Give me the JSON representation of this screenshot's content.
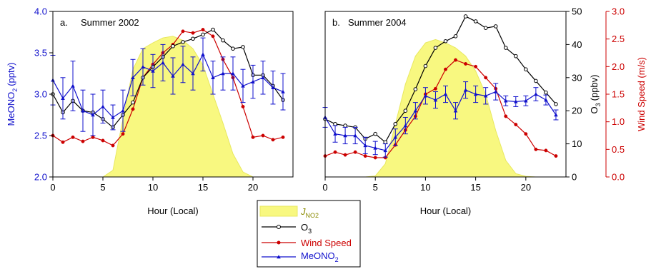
{
  "colors": {
    "meono2": "#1010cc",
    "o3": "#000000",
    "wind": "#cc0000",
    "jno2_fill": "#f8f880",
    "jno2_stroke": "#e8e860",
    "jno2_label": "#8a8a00"
  },
  "legend": {
    "jno2": "J",
    "jno2_sub": "NO2",
    "o3": "O",
    "o3_sub": "3",
    "wind": "Wind Speed",
    "meono2": "MeONO",
    "meono2_sub": "2"
  },
  "chart_data": [
    {
      "type": "line",
      "panel": "a.",
      "title": "Summer 2002",
      "xlabel": "Hour (Local)",
      "ylabel": "MeONO",
      "ylabel_sub": "2",
      "ylabel_unit": "(pptv)",
      "xlim": [
        0,
        24
      ],
      "ylim": [
        2.0,
        4.0
      ],
      "xticks": [
        "0",
        "5",
        "10",
        "15",
        "20"
      ],
      "yticks": [
        "2.0",
        "2.5",
        "3.0",
        "3.5",
        "4.0"
      ],
      "grid": false,
      "x": [
        0,
        1,
        2,
        3,
        4,
        5,
        6,
        7,
        8,
        9,
        10,
        11,
        12,
        13,
        14,
        15,
        16,
        17,
        18,
        19,
        20,
        21,
        22,
        23
      ],
      "series": [
        {
          "name": "MeONO2",
          "axis": "left",
          "values": [
            3.17,
            2.95,
            3.1,
            2.8,
            2.75,
            2.85,
            2.72,
            2.8,
            3.2,
            3.33,
            3.28,
            3.38,
            3.22,
            3.36,
            3.25,
            3.48,
            3.2,
            3.25,
            3.25,
            3.1,
            3.15,
            3.2,
            3.08,
            3.03
          ],
          "errors": [
            0.3,
            0.25,
            0.3,
            0.25,
            0.25,
            0.2,
            0.15,
            0.25,
            0.22,
            0.22,
            0.2,
            0.22,
            0.22,
            0.22,
            0.2,
            0.2,
            0.2,
            0.2,
            0.2,
            0.2,
            0.2,
            0.2,
            0.2,
            0.22
          ]
        },
        {
          "name": "O3",
          "axis": "right",
          "values": [
            3.0,
            2.78,
            2.92,
            2.8,
            2.78,
            2.7,
            2.6,
            2.75,
            2.9,
            3.2,
            3.33,
            3.45,
            3.58,
            3.63,
            3.67,
            3.72,
            3.78,
            3.65,
            3.55,
            3.57,
            3.23,
            3.23,
            3.1,
            2.93
          ]
        },
        {
          "name": "Wind Speed",
          "axis": "right",
          "values": [
            2.5,
            2.42,
            2.48,
            2.43,
            2.48,
            2.44,
            2.38,
            2.52,
            2.82,
            3.2,
            3.36,
            3.5,
            3.6,
            3.76,
            3.74,
            3.78,
            3.7,
            3.42,
            3.2,
            2.85,
            2.48,
            2.5,
            2.45,
            2.48
          ]
        },
        {
          "name": "JNO2",
          "type": "area",
          "values": [
            2.0,
            2.0,
            2.0,
            2.0,
            2.0,
            2.0,
            2.08,
            2.7,
            3.3,
            3.55,
            3.62,
            3.68,
            3.7,
            3.65,
            3.55,
            3.35,
            3.0,
            2.65,
            2.28,
            2.06,
            2.0,
            2.0,
            2.0,
            2.0
          ]
        }
      ]
    },
    {
      "type": "line",
      "panel": "b.",
      "title": "Summer 2004",
      "xlabel": "Hour (Local)",
      "xlim": [
        0,
        24
      ],
      "xticks": [
        "0",
        "5",
        "10",
        "15",
        "20"
      ],
      "y_o3_label": "O",
      "y_o3_sub": "3",
      "y_o3_unit": "(ppbv)",
      "y_o3_lim": [
        0,
        50
      ],
      "y_o3_ticks": [
        "0",
        "10",
        "20",
        "30",
        "40",
        "50"
      ],
      "y_wind_label": "Wind Speed (m/s)",
      "y_wind_lim": [
        0.0,
        3.0
      ],
      "y_wind_ticks": [
        "0.0",
        "0.5",
        "1.0",
        "1.5",
        "2.0",
        "2.5",
        "3.0"
      ],
      "ylim_meono2": [
        2.0,
        4.0
      ],
      "grid": false,
      "x": [
        0,
        1,
        2,
        3,
        4,
        5,
        6,
        7,
        8,
        9,
        10,
        11,
        12,
        13,
        14,
        15,
        16,
        17,
        18,
        19,
        20,
        21,
        22,
        23
      ],
      "series": [
        {
          "name": "MeONO2",
          "axis": "meono2",
          "values": [
            2.72,
            2.52,
            2.5,
            2.5,
            2.38,
            2.35,
            2.32,
            2.48,
            2.62,
            2.8,
            2.98,
            2.93,
            3.0,
            2.8,
            3.05,
            3.0,
            2.98,
            3.03,
            2.92,
            2.91,
            2.92,
            3.0,
            2.93,
            2.75
          ],
          "errors": [
            0.12,
            0.1,
            0.1,
            0.1,
            0.1,
            0.08,
            0.08,
            0.1,
            0.1,
            0.1,
            0.1,
            0.1,
            0.1,
            0.1,
            0.1,
            0.1,
            0.1,
            0.1,
            0.06,
            0.06,
            0.06,
            0.08,
            0.06,
            0.06
          ]
        },
        {
          "name": "O3",
          "axis": "o3",
          "values": [
            17.5,
            16,
            15.5,
            15,
            11.5,
            13,
            10.5,
            16,
            20,
            26.5,
            33.5,
            39,
            41,
            42.5,
            48.5,
            47,
            45,
            45.5,
            39,
            36.5,
            32.5,
            29,
            25.5,
            22
          ]
        },
        {
          "name": "Wind Speed",
          "axis": "wind",
          "values": [
            0.38,
            0.45,
            0.4,
            0.45,
            0.38,
            0.35,
            0.35,
            0.58,
            0.85,
            1.1,
            1.5,
            1.6,
            1.95,
            2.12,
            2.05,
            2.0,
            1.8,
            1.6,
            1.1,
            0.95,
            0.78,
            0.5,
            0.48,
            0.38
          ]
        },
        {
          "name": "JNO2",
          "type": "area",
          "axis": "o3",
          "values": [
            0,
            0,
            0,
            0,
            0,
            0.3,
            4,
            16,
            28,
            36.5,
            40.5,
            41.5,
            40.5,
            39,
            36.5,
            32,
            25,
            14,
            5,
            1,
            0.2,
            0,
            0,
            0
          ]
        }
      ]
    }
  ]
}
